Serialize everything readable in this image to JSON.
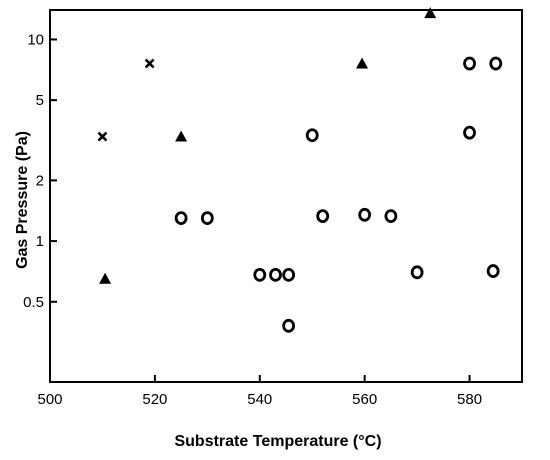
{
  "chart_data": {
    "type": "scatter",
    "title": "",
    "xlabel": "Substrate Temperature (°C)",
    "ylabel": "Gas Pressure (Pa)",
    "xlim": [
      500,
      590
    ],
    "ylim": [
      0.2,
      14
    ],
    "yscale": "log",
    "grid": false,
    "legend": "none",
    "x_ticks": [
      {
        "value": 500,
        "label": "500"
      },
      {
        "value": 520,
        "label": "520"
      },
      {
        "value": 540,
        "label": "540"
      },
      {
        "value": 560,
        "label": "560"
      },
      {
        "value": 580,
        "label": "580"
      }
    ],
    "y_ticks": [
      {
        "value": 0.5,
        "label": "0.5"
      },
      {
        "value": 1,
        "label": "1"
      },
      {
        "value": 2,
        "label": "2"
      },
      {
        "value": 5,
        "label": "5"
      },
      {
        "value": 10,
        "label": "10"
      }
    ],
    "series": [
      {
        "marker": "cross",
        "color": "#000000",
        "points": [
          [
            510,
            3.3
          ],
          [
            519,
            7.6
          ]
        ]
      },
      {
        "marker": "triangle",
        "color": "#000000",
        "points": [
          [
            510.5,
            0.65
          ],
          [
            525,
            3.3
          ],
          [
            559.5,
            7.6
          ],
          [
            572.5,
            13.5
          ]
        ]
      },
      {
        "marker": "circle",
        "color": "#000000",
        "points": [
          [
            525,
            1.3
          ],
          [
            530,
            1.3
          ],
          [
            540,
            0.68
          ],
          [
            543,
            0.68
          ],
          [
            545.5,
            0.68
          ],
          [
            545.5,
            0.38
          ],
          [
            550,
            3.35
          ],
          [
            552,
            1.33
          ],
          [
            560,
            1.35
          ],
          [
            565,
            1.33
          ],
          [
            570,
            0.7
          ],
          [
            580,
            7.6
          ],
          [
            585,
            7.6
          ],
          [
            580,
            3.45
          ],
          [
            584.5,
            0.71
          ]
        ]
      }
    ]
  }
}
